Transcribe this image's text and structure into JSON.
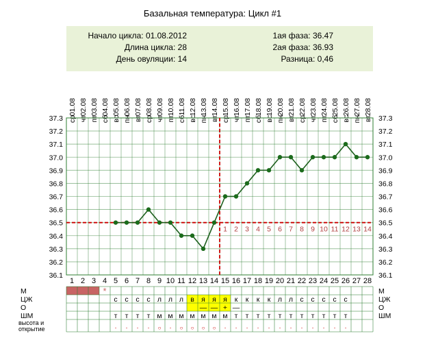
{
  "header": {
    "title": "Базальная температура: Цикл #1"
  },
  "summary": {
    "left": [
      {
        "label": "Начало цикла:",
        "value": "01.08.2012"
      },
      {
        "label": "Длина цикла:",
        "value": "28"
      },
      {
        "label": "День овуляции:",
        "value": "14"
      }
    ],
    "right": [
      {
        "label": "1ая фаза:",
        "value": "36.47"
      },
      {
        "label": "2ая фаза:",
        "value": "36.93"
      },
      {
        "label": "Разница:",
        "value": "0,46"
      }
    ]
  },
  "chart_data": {
    "type": "line",
    "dates": [
      "01.08",
      "02.08",
      "03.08",
      "04.08",
      "05.08",
      "06.08",
      "07.08",
      "08.08",
      "09.08",
      "10.08",
      "11.08",
      "12.08",
      "13.08",
      "14.08",
      "15.08",
      "16.08",
      "17.08",
      "18.08",
      "19.08",
      "20.08",
      "21.08",
      "22.08",
      "23.08",
      "24.08",
      "25.08",
      "26.08",
      "27.08",
      "28.08"
    ],
    "weekdays": [
      "ср",
      "чт",
      "пт",
      "сб",
      "вс",
      "пн",
      "вт",
      "ср",
      "чт",
      "пт",
      "сб",
      "вс",
      "пн",
      "вт",
      "ср",
      "чт",
      "пт",
      "сб",
      "вс",
      "пн",
      "вт",
      "ср",
      "чт",
      "пт",
      "сб",
      "вс",
      "пн",
      "вт"
    ],
    "days": [
      1,
      2,
      3,
      4,
      5,
      6,
      7,
      8,
      9,
      10,
      11,
      12,
      13,
      14,
      15,
      16,
      17,
      18,
      19,
      20,
      21,
      22,
      23,
      24,
      25,
      26,
      27,
      28
    ],
    "temperatures": [
      null,
      null,
      null,
      null,
      36.5,
      36.5,
      36.5,
      36.6,
      36.5,
      36.5,
      36.4,
      36.4,
      36.3,
      36.5,
      36.7,
      36.7,
      36.8,
      36.9,
      36.9,
      37.0,
      37.0,
      36.9,
      37.0,
      37.0,
      37.0,
      37.1,
      37.0,
      37.0
    ],
    "y_ticks": [
      "37.3",
      "37.2",
      "37.1",
      "37.0",
      "36.9",
      "36.8",
      "36.7",
      "36.6",
      "36.5",
      "36.4",
      "36.3",
      "36.2",
      "36.1"
    ],
    "ylim": [
      36.1,
      37.3
    ],
    "coverline": 36.5,
    "ovulation_day": 14,
    "phase2_labels": [
      "1",
      "2",
      "3",
      "4",
      "5",
      "6",
      "7",
      "8",
      "9",
      "10",
      "11",
      "12",
      "13",
      "14"
    ],
    "colors": {
      "line": "#1b5e1b",
      "point": "#1b6b1b",
      "grid": "#2e7d32",
      "coverline": "#cc0000",
      "ovulation": "#cc0000",
      "phase2_labels": "#b04040",
      "menstruation": "#c86464",
      "lh_highlight": "#ffff00"
    },
    "marker_star": "*",
    "rows": {
      "labels": [
        "М",
        "ЦЖ",
        "О",
        "ШМ"
      ],
      "bottom_label_1": "высота и",
      "bottom_label_2": "открытие",
      "menstruation_days": [
        1,
        2,
        3
      ],
      "cj": [
        "",
        "",
        "",
        "",
        "с",
        "с",
        "с",
        "с",
        "л",
        "л",
        "л",
        "в",
        "я",
        "я",
        "я",
        "к",
        "к",
        "к",
        "к",
        "л",
        "л",
        "с",
        "с",
        "с",
        "с",
        "с",
        "",
        ""
      ],
      "o": [
        "",
        "",
        "",
        "",
        "",
        "",
        "",
        "",
        "",
        "",
        "",
        "",
        "—",
        "—",
        "+",
        "—",
        "",
        "",
        "",
        "",
        "",
        "",
        "",
        "",
        "",
        "",
        "",
        ""
      ],
      "o_highlight_days": [
        12,
        13,
        14,
        15
      ],
      "shm": [
        "",
        "",
        "",
        "",
        "т",
        "т",
        "т",
        "т",
        "м",
        "м",
        "м",
        "м",
        "м",
        "м",
        "м",
        "т",
        "т",
        "т",
        "т",
        "т",
        "т",
        "т",
        "т",
        "т",
        "т",
        "т",
        "",
        ""
      ],
      "cervix": [
        "",
        "",
        "",
        "",
        "·",
        "·",
        "·",
        "·",
        "○",
        "·",
        "○",
        "○",
        "○",
        "○",
        "·",
        "·",
        "·",
        "·",
        "·",
        "·",
        "·",
        "·",
        "·",
        "·",
        "·",
        "·",
        "",
        ""
      ]
    }
  }
}
